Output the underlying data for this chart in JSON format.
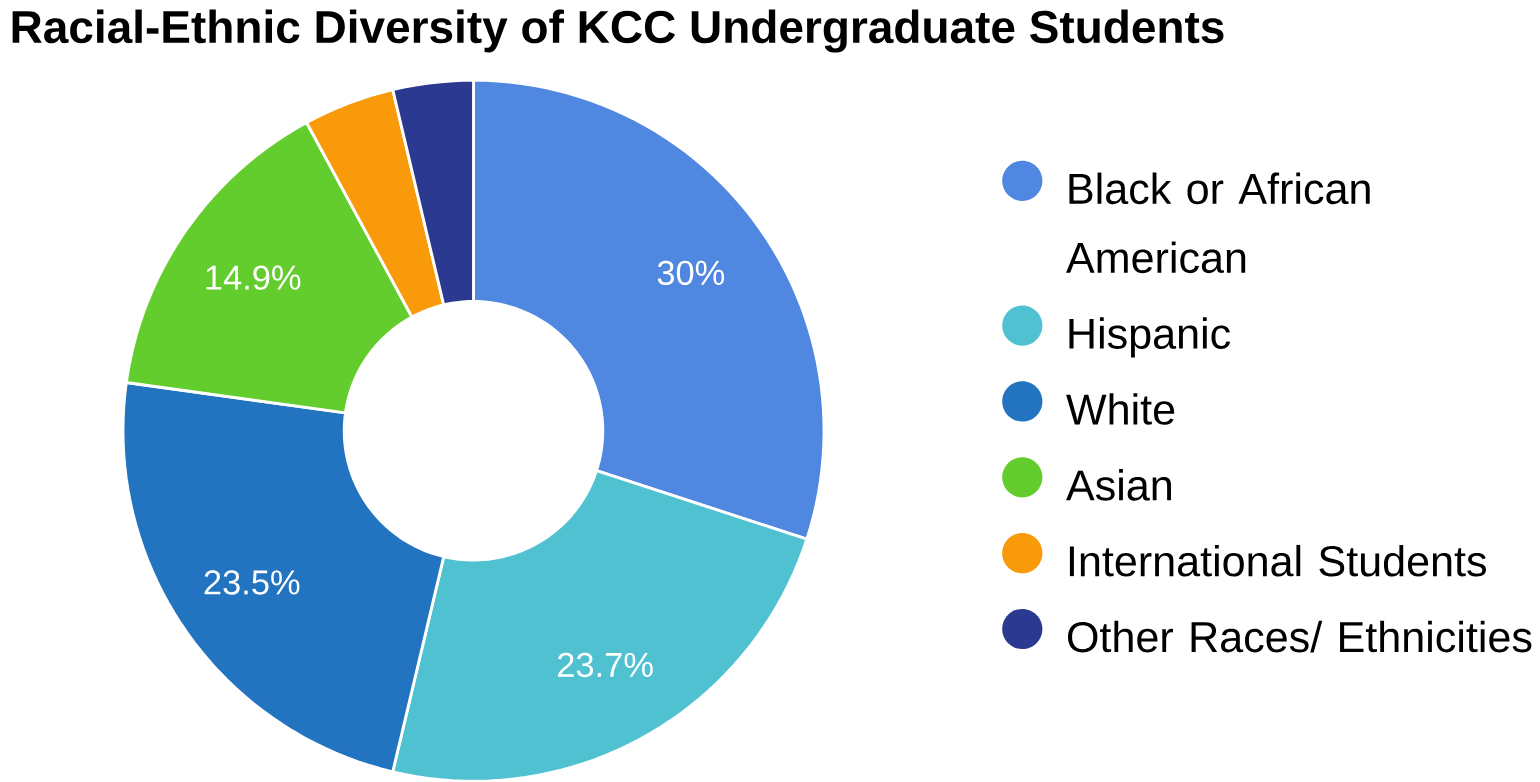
{
  "chart_data": {
    "type": "donut",
    "title": "Racial-Ethnic Diversity of KCC Undergraduate Students",
    "categories": [
      "Black or African American",
      "Hispanic",
      "White",
      "Asian",
      "International Students",
      "Other Races/ Ethnicities"
    ],
    "values": [
      30,
      23.7,
      23.5,
      14.9,
      4.2,
      3.7
    ],
    "value_labels": [
      "30%",
      "23.7%",
      "23.5%",
      "14.9%",
      null,
      null
    ],
    "colors": [
      "#5087e0",
      "#4fc1d0",
      "#2374c0",
      "#63cd2e",
      "#f99a0a",
      "#2b3990"
    ],
    "legend": "right"
  }
}
